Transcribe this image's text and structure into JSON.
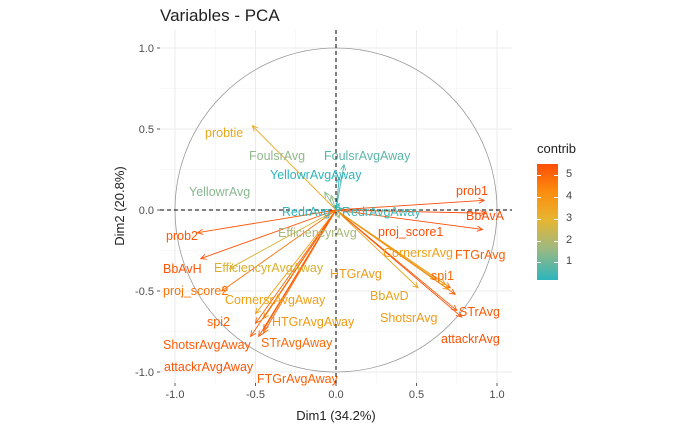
{
  "chart_data": {
    "type": "scatter",
    "title": "Variables - PCA",
    "xlabel": "Dim1 (34.2%)",
    "ylabel": "Dim2 (20.8%)",
    "xlim": [
      -1.1,
      1.1
    ],
    "ylim": [
      -1.05,
      1.05
    ],
    "x_ticks": [
      "-1.0",
      "-0.5",
      "0.0",
      "0.5",
      "1.0"
    ],
    "y_ticks": [
      "-1.0",
      "-0.5",
      "0.0",
      "0.5",
      "1.0"
    ],
    "grid": true,
    "correlation_circle": true,
    "legend": {
      "title": "contrib",
      "placement": "right",
      "ticks": [
        "1",
        "2",
        "3",
        "4",
        "5"
      ],
      "range": [
        0.2,
        5.5
      ]
    },
    "colors": {
      "low": "#2db5bd",
      "mid_low": "#a0b97e",
      "mid": "#e7b531",
      "mid_high": "#fc8d0d",
      "high": "#fc4e08"
    },
    "variables": [
      {
        "name": "prob1",
        "x": 0.92,
        "y": 0.06,
        "contrib": 5.2,
        "color": "#fc4e08"
      },
      {
        "name": "BbAvA",
        "x": 0.93,
        "y": -0.02,
        "contrib": 5.3,
        "color": "#fc4e08"
      },
      {
        "name": "proj_score1",
        "x": 0.91,
        "y": -0.12,
        "contrib": 5.1,
        "color": "#fc4e08"
      },
      {
        "name": "FTGrAvg",
        "x": 0.74,
        "y": -0.52,
        "contrib": 4.9,
        "color": "#fc5e08"
      },
      {
        "name": "spi1",
        "x": 0.71,
        "y": -0.48,
        "contrib": 4.7,
        "color": "#fc6a09"
      },
      {
        "name": "STrAvg",
        "x": 0.75,
        "y": -0.62,
        "contrib": 5.0,
        "color": "#fc5a08"
      },
      {
        "name": "attackrAvg",
        "x": 0.78,
        "y": -0.66,
        "contrib": 5.1,
        "color": "#fc5208"
      },
      {
        "name": "CornersrAvg",
        "x": 0.68,
        "y": -0.46,
        "contrib": 3.7,
        "color": "#f0a018"
      },
      {
        "name": "ShotsrAvg",
        "x": 0.7,
        "y": -0.49,
        "contrib": 3.9,
        "color": "#f09a14"
      },
      {
        "name": "HTGrAvg",
        "x": 0.62,
        "y": -0.43,
        "contrib": 3.9,
        "color": "#ec9a16"
      },
      {
        "name": "BbAvD",
        "x": 0.51,
        "y": -0.48,
        "contrib": 3.6,
        "color": "#eaa41e"
      },
      {
        "name": "probtie",
        "x": -0.52,
        "y": 0.52,
        "contrib": 3.5,
        "color": "#e9a820"
      },
      {
        "name": "FoulsrAvg",
        "x": -0.03,
        "y": 0.09,
        "contrib": 1.7,
        "color": "#92b88c"
      },
      {
        "name": "FoulsrAvgAway",
        "x": 0.05,
        "y": 0.28,
        "contrib": 1.0,
        "color": "#5bb6a8"
      },
      {
        "name": "YellowrAvgAway",
        "x": 0.02,
        "y": 0.2,
        "contrib": 0.6,
        "color": "#2db5bd"
      },
      {
        "name": "YellowrAvg",
        "x": -0.07,
        "y": 0.11,
        "contrib": 1.5,
        "color": "#8ab892"
      },
      {
        "name": "RedrAvg",
        "x": 0.02,
        "y": 0.04,
        "contrib": 0.5,
        "color": "#34b5bb"
      },
      {
        "name": "RedrAvgAway",
        "x": 0.04,
        "y": 0.01,
        "contrib": 0.7,
        "color": "#3db5b6"
      },
      {
        "name": "EfficiencyrAvg",
        "x": 0.02,
        "y": -0.05,
        "contrib": 2.0,
        "color": "#a8b97a"
      },
      {
        "name": "prob2",
        "x": -0.86,
        "y": -0.14,
        "contrib": 5.0,
        "color": "#fc5808"
      },
      {
        "name": "BbAvH",
        "x": -0.84,
        "y": -0.3,
        "contrib": 5.1,
        "color": "#fc5408"
      },
      {
        "name": "EfficiencyrAvgAway",
        "x": -0.66,
        "y": -0.36,
        "contrib": 2.9,
        "color": "#d8b02e"
      },
      {
        "name": "proj_score2",
        "x": -0.71,
        "y": -0.5,
        "contrib": 4.6,
        "color": "#fc7208"
      },
      {
        "name": "CornersrAvgAway",
        "x": -0.5,
        "y": -0.64,
        "contrib": 3.8,
        "color": "#f0a016"
      },
      {
        "name": "spi2",
        "x": -0.5,
        "y": -0.7,
        "contrib": 4.8,
        "color": "#fc6208"
      },
      {
        "name": "HTGrAvgAway",
        "x": -0.45,
        "y": -0.67,
        "contrib": 4.0,
        "color": "#ed9a12"
      },
      {
        "name": "ShotsrAvgAway",
        "x": -0.53,
        "y": -0.78,
        "contrib": 4.9,
        "color": "#fc5c08"
      },
      {
        "name": "STrAvgAway",
        "x": -0.45,
        "y": -0.76,
        "contrib": 4.7,
        "color": "#fc6a08"
      },
      {
        "name": "attackrAvgAway",
        "x": -0.48,
        "y": -0.78,
        "contrib": 5.0,
        "color": "#fc5608"
      },
      {
        "name": "FTGrAvgAway",
        "x": -0.45,
        "y": -0.74,
        "contrib": 4.8,
        "color": "#fc6008"
      }
    ]
  }
}
